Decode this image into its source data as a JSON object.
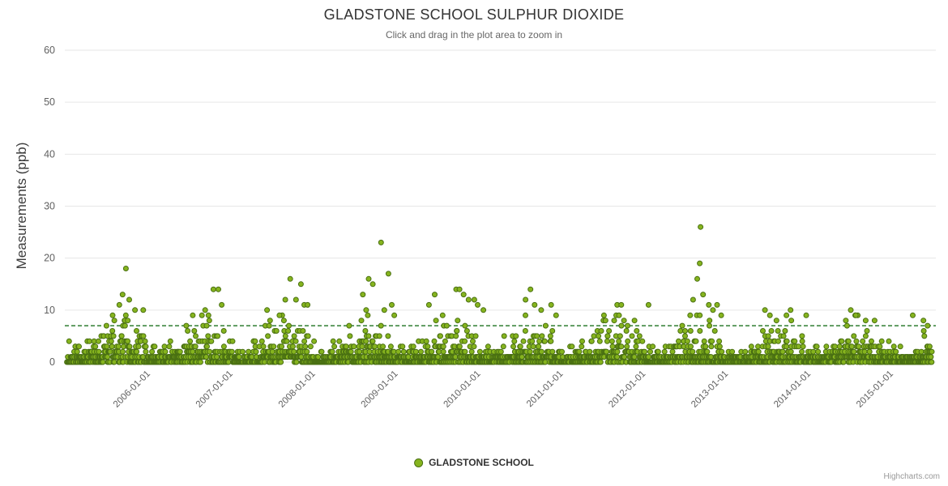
{
  "credits": "Highcharts.com",
  "colors": {
    "background": "#ffffff",
    "gridline": "#e6e6e6",
    "title": "#333333",
    "subtitle": "#666666",
    "axis_label": "#606060",
    "y_axis_title": "#3c3c3c",
    "legend_text": "#333333",
    "credits_text": "#999999"
  },
  "chart_data": {
    "type": "scatter",
    "title": "GLADSTONE SCHOOL SULPHUR DIOXIDE",
    "subtitle": "Click and drag in the plot area to zoom in",
    "xlabel": "",
    "ylabel": "Measurements (ppb)",
    "ylim": [
      0,
      60
    ],
    "yticks": [
      0,
      10,
      20,
      30,
      40,
      50,
      60
    ],
    "grid": "horizontal-only",
    "legend_position": "bottom-center",
    "x_axis_type": "datetime",
    "xlim_decimal_years": [
      2005.0,
      2015.55
    ],
    "x_tick_years": [
      2006,
      2007,
      2008,
      2009,
      2010,
      2011,
      2012,
      2013,
      2014,
      2015
    ],
    "x_tick_labels": [
      "2006-01-01",
      "2007-01-01",
      "2008-01-01",
      "2009-01-01",
      "2010-01-01",
      "2011-01-01",
      "2012-01-01",
      "2013-01-01",
      "2014-01-01",
      "2015-01-01"
    ],
    "plot_line": {
      "value": 7,
      "color": "#2e7d32",
      "style": "dashed"
    },
    "series": [
      {
        "name": "GLADSTONE SCHOOL",
        "marker_color": "#86b41e",
        "marker_stroke": "#4a7013",
        "unit": "ppb",
        "pattern": "dense near-daily readings, mostly 0-8 ppb quantized to integers, mid-year (winter) peaks each year",
        "notable_points": [
          [
            2005.6,
            8
          ],
          [
            2005.66,
            11
          ],
          [
            2005.7,
            13
          ],
          [
            2005.74,
            18
          ],
          [
            2005.78,
            12
          ],
          [
            2005.85,
            10
          ],
          [
            2005.95,
            10
          ],
          [
            2006.55,
            9
          ],
          [
            2006.7,
            10
          ],
          [
            2006.8,
            14
          ],
          [
            2006.86,
            14
          ],
          [
            2006.9,
            11
          ],
          [
            2007.45,
            10
          ],
          [
            2007.6,
            9
          ],
          [
            2007.67,
            12
          ],
          [
            2007.73,
            16
          ],
          [
            2007.8,
            12
          ],
          [
            2007.86,
            15
          ],
          [
            2007.9,
            11
          ],
          [
            2007.94,
            11
          ],
          [
            2008.61,
            13
          ],
          [
            2008.65,
            10
          ],
          [
            2008.68,
            16
          ],
          [
            2008.73,
            15
          ],
          [
            2008.83,
            23
          ],
          [
            2008.87,
            10
          ],
          [
            2008.92,
            17
          ],
          [
            2008.96,
            11
          ],
          [
            2008.99,
            9
          ],
          [
            2009.41,
            11
          ],
          [
            2009.48,
            13
          ],
          [
            2009.74,
            14
          ],
          [
            2009.78,
            14
          ],
          [
            2009.83,
            13
          ],
          [
            2009.89,
            12
          ],
          [
            2009.96,
            12
          ],
          [
            2010.0,
            11
          ],
          [
            2010.07,
            10
          ],
          [
            2010.58,
            12
          ],
          [
            2010.64,
            14
          ],
          [
            2010.69,
            11
          ],
          [
            2010.77,
            10
          ],
          [
            2010.89,
            11
          ],
          [
            2010.95,
            9
          ],
          [
            2011.53,
            9
          ],
          [
            2011.69,
            11
          ],
          [
            2011.74,
            11
          ],
          [
            2011.9,
            8
          ],
          [
            2012.07,
            11
          ],
          [
            2012.61,
            12
          ],
          [
            2012.66,
            16
          ],
          [
            2012.69,
            19
          ],
          [
            2012.7,
            26
          ],
          [
            2012.73,
            13
          ],
          [
            2012.8,
            11
          ],
          [
            2012.85,
            10
          ],
          [
            2012.9,
            11
          ],
          [
            2012.95,
            9
          ],
          [
            2013.48,
            10
          ],
          [
            2013.54,
            9
          ],
          [
            2013.62,
            8
          ],
          [
            2013.79,
            10
          ],
          [
            2013.98,
            9
          ],
          [
            2014.46,
            8
          ],
          [
            2014.52,
            10
          ],
          [
            2014.58,
            9
          ],
          [
            2014.7,
            8
          ],
          [
            2015.27,
            9
          ],
          [
            2015.4,
            8
          ],
          [
            2015.45,
            7
          ]
        ],
        "background_cloud": {
          "count": 2600,
          "seed": 7,
          "x_start": 2005.03,
          "x_end": 2015.5,
          "base_ppb": 0.8,
          "seasonal_ppb": 2.2,
          "season_peak_frac": 0.65,
          "summer_cap_ppb": 3,
          "winter_extra_cap_ppb": 6,
          "yearly_decline": 0.02,
          "quantize": 1
        }
      }
    ]
  }
}
